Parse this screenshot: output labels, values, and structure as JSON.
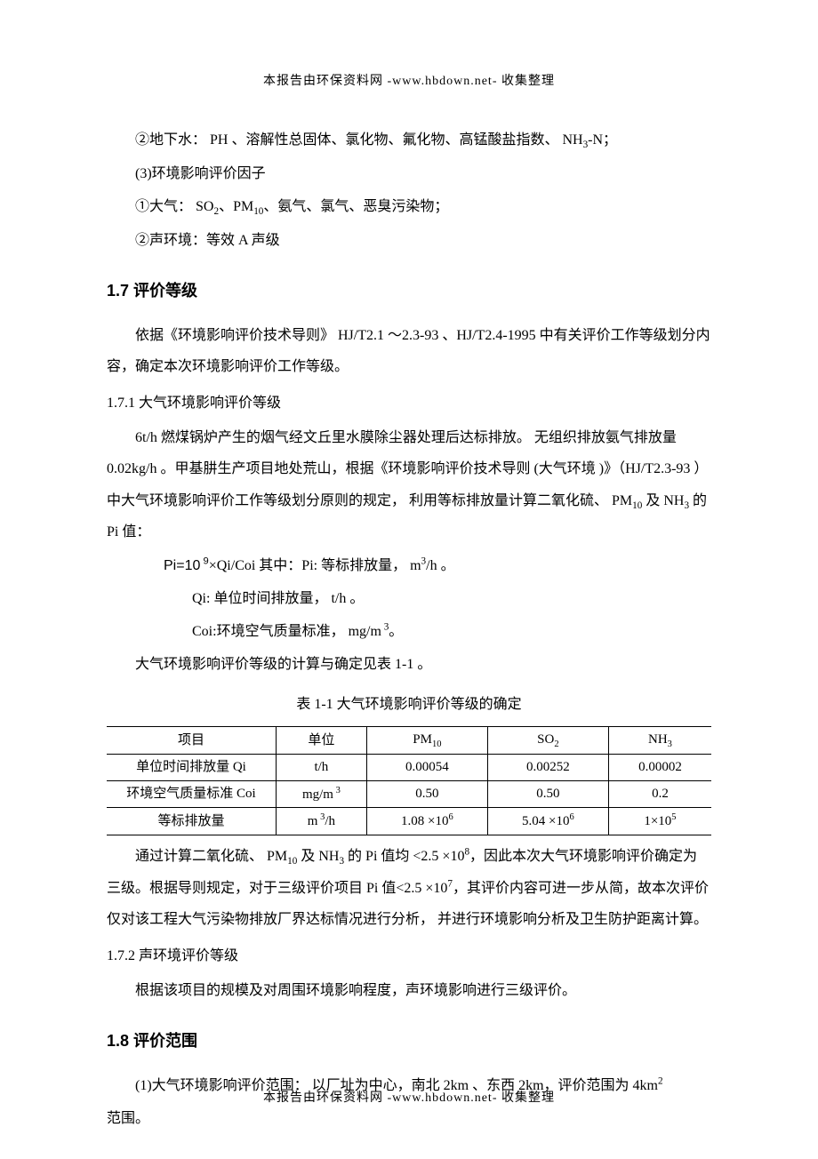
{
  "header_footer": "本报告由环保资料网    -www.hbdown.net-    收集整理",
  "intro": {
    "line1_prefix": "②地下水： PH 、溶解性总固体、氯化物、氟化物、高锰酸盐指数、    NH",
    "line1_sub": "3",
    "line1_suffix": "-N；",
    "line2": "(3)环境影响评价因子",
    "line3_prefix": "①大气：  SO",
    "line3_sub1": "2",
    "line3_mid": "、PM",
    "line3_sub2": "10",
    "line3_suffix": "、氨气、氯气、恶臭污染物；",
    "line4": "②声环境：等效  A 声级"
  },
  "s17": {
    "heading": "1.7 评价等级",
    "para1": "依据《环境影响评价技术导则》   HJ/T2.1 ～2.3-93 、HJ/T2.4-1995  中有关评价工作等级划分内容，确定本次环境影响评价工作等级。",
    "sub1": "1.7.1 大气环境影响评价等级",
    "p2a": "6t/h 燃煤锅炉产生的烟气经文丘里水膜除尘器处理后达标排放。   无组织排放氨气排放量  0.02kg/h 。甲基肼生产项目地处荒山，根据《环境影响评价技术导则    (大气环境 )》（HJ/T2.3-93 ）中大气环境影响评价工作等级划分原则的规定，   利用等标排放量计算二氧化硫、 PM",
    "p2_sub1": "10",
    "p2_mid": " 及 NH",
    "p2_sub2": "3",
    "p2_end": " 的 Pi 值：",
    "formula1_a": "Pi=10",
    "formula1_sup": " 9",
    "formula1_b": "×Qi/Coi       其中：Pi: 等标排放量，  m",
    "formula1_sup2": "3",
    "formula1_c": "/h 。",
    "formula2": "Qi: 单位时间排放量，   t/h 。",
    "formula3_a": "Coi:环境空气质量标准，   mg/m",
    "formula3_sup": " 3",
    "formula3_b": "。",
    "p3": "大气环境影响评价等级的计算与确定见表     1-1 。",
    "table_caption": "表 1-1    大气环境影响评价等级的确定",
    "after_table_a": "通过计算二氧化硫、 PM",
    "after_table_sub1": "10",
    "after_table_mid1": " 及 NH",
    "after_table_sub2": "3",
    "after_table_mid2": " 的 Pi 值均 <2.5 ×10",
    "after_table_sup1": "8",
    "after_table_mid3": "，因此本次大气环境影响评价确定为三级。根据导则规定，对于三级评价项目     Pi 值<2.5 ×10",
    "after_table_sup2": "7",
    "after_table_end": "，其评价内容可进一步从简，故本次评价仅对该工程大气污染物排放厂界达标情况进行分析，    并进行环境影响分析及卫生防护距离计算。",
    "sub2": "1.7.2 声环境评价等级",
    "p4": "根据该项目的规模及对周围环境影响程度，声环境影响进行三级评价。"
  },
  "table": {
    "headers": {
      "c0": "项目",
      "c1": "单位",
      "c2_a": "PM",
      "c2_sub": "10",
      "c3_a": "SO",
      "c3_sub": "2",
      "c4_a": "NH",
      "c4_sub": "3"
    },
    "rows": [
      {
        "c0": "单位时间排放量    Qi",
        "c1": "t/h",
        "c2": "0.00054",
        "c3": "0.00252",
        "c4": "0.00002"
      },
      {
        "c0": "环境空气质量标准   Coi",
        "c1_a": "mg/m",
        "c1_sup": " 3",
        "c2": "0.50",
        "c3": "0.50",
        "c4": "0.2"
      },
      {
        "c0": "等标排放量",
        "c1_a": "m",
        "c1_sup": " 3",
        "c1_b": "/h",
        "c2_a": "1.08 ×10",
        "c2_sup": "6",
        "c3_a": "5.04 ×10",
        "c3_sup": "6",
        "c4_a": "1×10",
        "c4_sup": "5"
      }
    ],
    "col_widths": [
      "28%",
      "15%",
      "20%",
      "20%",
      "17%"
    ]
  },
  "s18": {
    "heading": "1.8 评价范围",
    "p1_a": "(1)大气环境影响评价范围：  以厂址为中心，南北  2km 、东西  2km，评价范围为  4km",
    "p1_sup": "2",
    "p1_b": "范围。"
  }
}
